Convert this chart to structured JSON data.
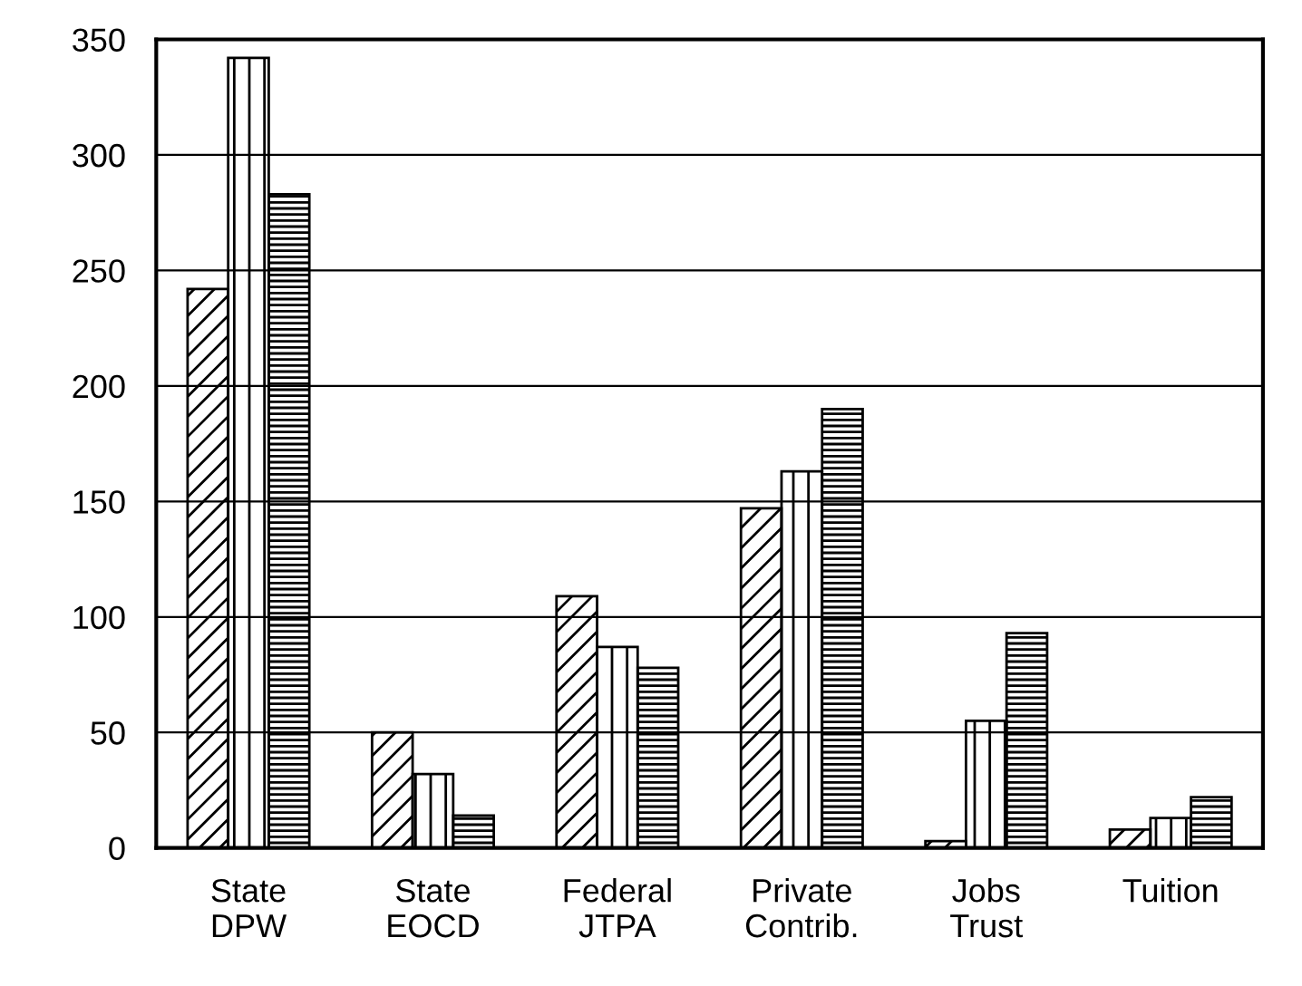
{
  "chart_data": {
    "type": "bar",
    "categories": [
      "State\nDPW",
      "State\nEOCD",
      "Federal\nJTPA",
      "Private\nContrib.",
      "Jobs\nTrust",
      "Tuition"
    ],
    "series": [
      {
        "color": "#000000",
        "values": [
          242,
          50,
          109,
          147,
          3,
          8
        ]
      },
      {
        "color": "#000000",
        "values": [
          342,
          32,
          87,
          163,
          55,
          13
        ]
      },
      {
        "color": "#000000",
        "values": [
          283,
          14,
          78,
          190,
          93,
          22
        ]
      }
    ],
    "ylim": [
      0,
      350
    ],
    "yticks": [
      0,
      50,
      100,
      150,
      200,
      250,
      300,
      350
    ],
    "grid": "y",
    "legend": false
  }
}
